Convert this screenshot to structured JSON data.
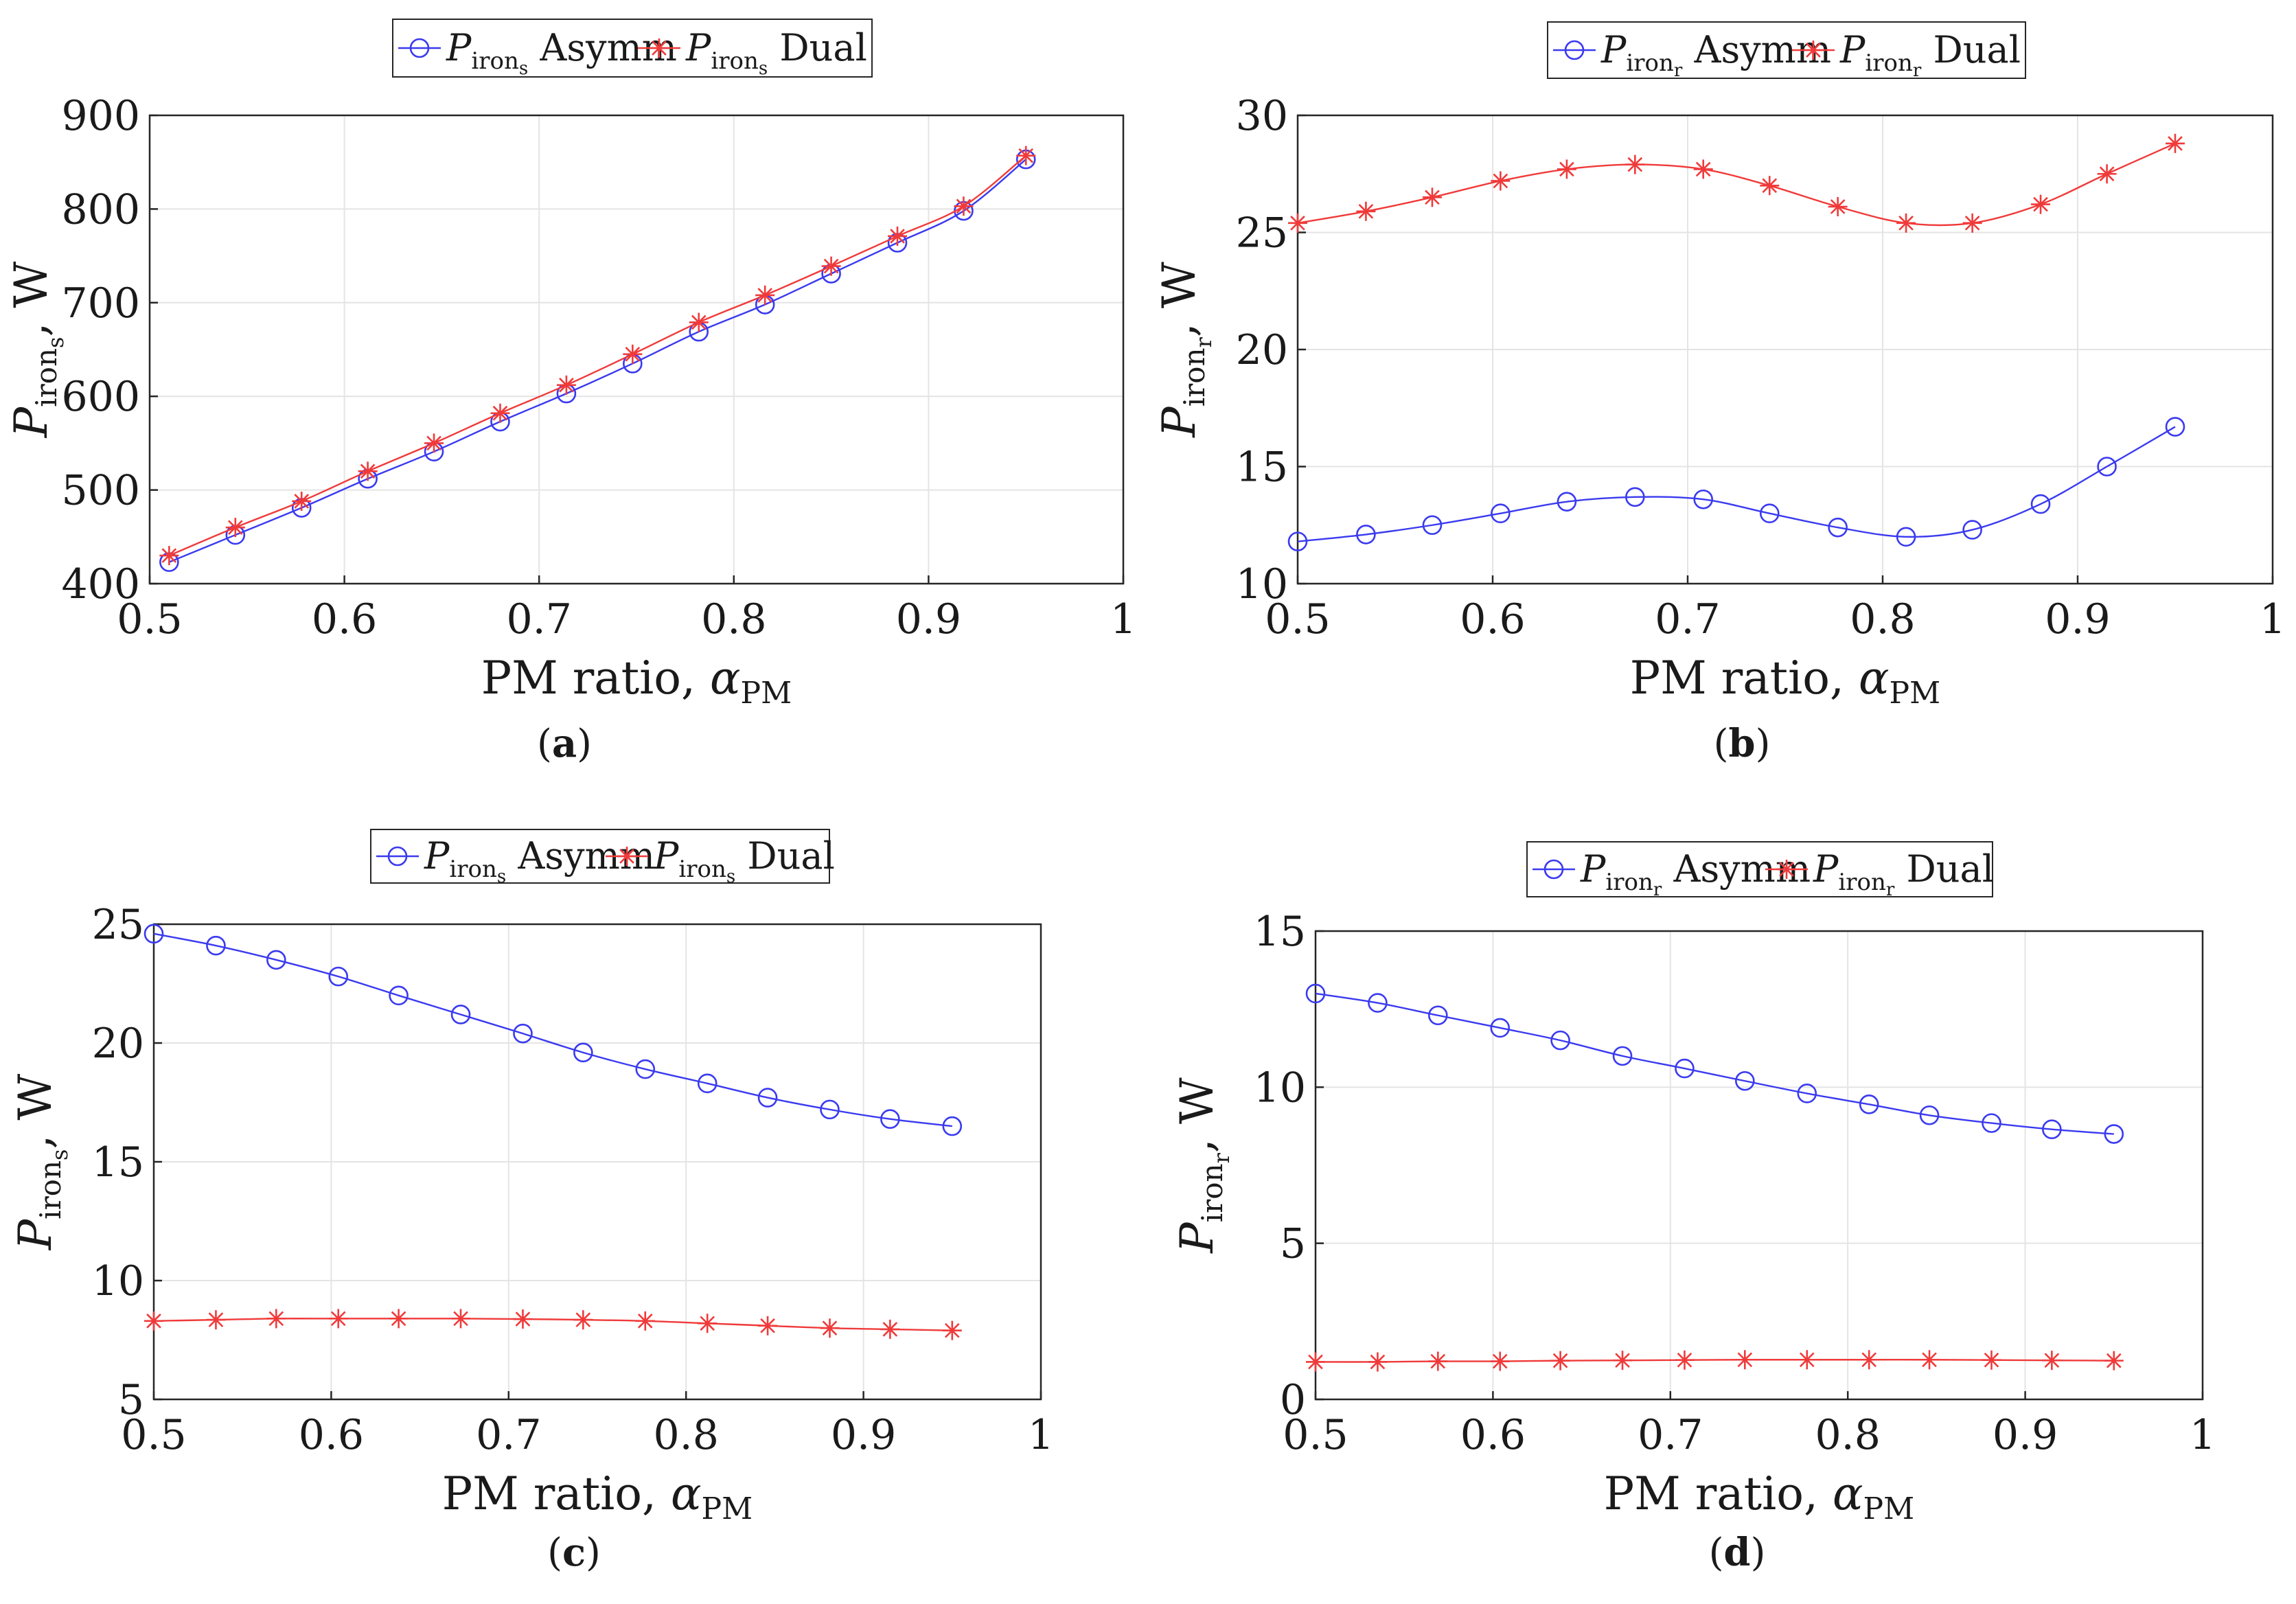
{
  "chart_data": [
    {
      "type": "line",
      "panel_label": "(a)",
      "panel_letter": "a",
      "xlabel": "PM ratio, α",
      "xlabel_main": "PM ratio, ",
      "xlabel_symbol": "α",
      "xlabel_sub": "PM",
      "ylabel": "P_irons, W",
      "ylabel_symbol": "P",
      "ylabel_sub": "iron",
      "ylabel_subsub": "s",
      "ylabel_unit": ", W",
      "xlim": [
        0.5,
        1
      ],
      "ylim": [
        400,
        900
      ],
      "xticks": [
        "0.5",
        "0.6",
        "0.7",
        "0.8",
        "0.9",
        "1"
      ],
      "yticks": [
        "400",
        "500",
        "600",
        "700",
        "800",
        "900"
      ],
      "grid": true,
      "legend_position": "top-center",
      "x": [
        0.51,
        0.544,
        0.578,
        0.612,
        0.646,
        0.68,
        0.714,
        0.748,
        0.782,
        0.816,
        0.85,
        0.884,
        0.918,
        0.95
      ],
      "series": [
        {
          "name": "P_irons Asymm",
          "sym": "P",
          "sub": "iron",
          "subsub": "s",
          "label": "Asymm",
          "color": "#3a3af0",
          "marker": "circle",
          "values": [
            423,
            452,
            481,
            512,
            541,
            573,
            603,
            635,
            669,
            698,
            731,
            764,
            798,
            853
          ]
        },
        {
          "name": "P_irons Dual",
          "sym": "P",
          "sub": "iron",
          "subsub": "s",
          "label": "Dual",
          "color": "#f03a3a",
          "marker": "star",
          "values": [
            430,
            460,
            488,
            520,
            550,
            582,
            612,
            645,
            679,
            708,
            739,
            771,
            803,
            857
          ]
        }
      ]
    },
    {
      "type": "line",
      "panel_label": "(b)",
      "panel_letter": "b",
      "xlabel": "PM ratio, α",
      "xlabel_main": "PM ratio, ",
      "xlabel_symbol": "α",
      "xlabel_sub": "PM",
      "ylabel": "P_ironr, W",
      "ylabel_symbol": "P",
      "ylabel_sub": "iron",
      "ylabel_subsub": "r",
      "ylabel_unit": ", W",
      "xlim": [
        0.5,
        1
      ],
      "ylim": [
        10,
        30
      ],
      "xticks": [
        "0.5",
        "0.6",
        "0.7",
        "0.8",
        "0.9",
        "1"
      ],
      "yticks": [
        "10",
        "15",
        "20",
        "25",
        "30"
      ],
      "grid": true,
      "legend_position": "top-center",
      "x": [
        0.5,
        0.535,
        0.569,
        0.604,
        0.638,
        0.673,
        0.708,
        0.742,
        0.777,
        0.812,
        0.846,
        0.881,
        0.915,
        0.95
      ],
      "series": [
        {
          "name": "P_ironr Asymm",
          "sym": "P",
          "sub": "iron",
          "subsub": "r",
          "label": "Asymm",
          "color": "#3a3af0",
          "marker": "circle",
          "values": [
            11.8,
            12.1,
            12.5,
            13.0,
            13.5,
            13.7,
            13.6,
            13.0,
            12.4,
            12.0,
            12.3,
            13.4,
            15.0,
            16.7
          ]
        },
        {
          "name": "P_ironr Dual",
          "sym": "P",
          "sub": "iron",
          "subsub": "r",
          "label": "Dual",
          "color": "#f03a3a",
          "marker": "star",
          "values": [
            25.4,
            25.9,
            26.5,
            27.2,
            27.7,
            27.9,
            27.7,
            27.0,
            26.1,
            25.4,
            25.4,
            26.2,
            27.5,
            28.8
          ]
        }
      ]
    },
    {
      "type": "line",
      "panel_label": "(c)",
      "panel_letter": "c",
      "xlabel": "PM ratio, α",
      "xlabel_main": "PM ratio, ",
      "xlabel_symbol": "α",
      "xlabel_sub": "PM",
      "ylabel": "P_irons, W",
      "ylabel_symbol": "P",
      "ylabel_sub": "iron",
      "ylabel_subsub": "s",
      "ylabel_unit": ", W",
      "xlim": [
        0.5,
        1
      ],
      "ylim": [
        5,
        25
      ],
      "xticks": [
        "0.5",
        "0.6",
        "0.7",
        "0.8",
        "0.9",
        "1"
      ],
      "yticks": [
        "5",
        "10",
        "15",
        "20",
        "25"
      ],
      "grid": true,
      "legend_position": "top-center",
      "x": [
        0.5,
        0.535,
        0.569,
        0.604,
        0.638,
        0.673,
        0.708,
        0.742,
        0.777,
        0.812,
        0.846,
        0.881,
        0.915,
        0.95
      ],
      "series": [
        {
          "name": "P_irons Asymm",
          "sym": "P",
          "sub": "iron",
          "subsub": "s",
          "label": "Asymm",
          "color": "#3a3af0",
          "marker": "circle",
          "values": [
            24.6,
            24.1,
            23.5,
            22.8,
            22.0,
            21.2,
            20.4,
            19.6,
            18.9,
            18.3,
            17.7,
            17.2,
            16.8,
            16.5
          ]
        },
        {
          "name": "P_irons Dual",
          "sym": "P",
          "sub": "iron",
          "subsub": "s",
          "label": "Dual",
          "color": "#f03a3a",
          "marker": "star",
          "values": [
            8.3,
            8.35,
            8.4,
            8.4,
            8.4,
            8.4,
            8.38,
            8.35,
            8.3,
            8.2,
            8.1,
            8.0,
            7.95,
            7.9
          ]
        }
      ]
    },
    {
      "type": "line",
      "panel_label": "(d)",
      "panel_letter": "d",
      "xlabel": "PM ratio, α",
      "xlabel_main": "PM ratio, ",
      "xlabel_symbol": "α",
      "xlabel_sub": "PM",
      "ylabel": "P_ironr, W",
      "ylabel_symbol": "P",
      "ylabel_sub": "iron",
      "ylabel_subsub": "r",
      "ylabel_unit": ", W",
      "xlim": [
        0.5,
        1
      ],
      "ylim": [
        0,
        15
      ],
      "xticks": [
        "0.5",
        "0.6",
        "0.7",
        "0.8",
        "0.9",
        "1"
      ],
      "yticks": [
        "0",
        "5",
        "10",
        "15"
      ],
      "grid": true,
      "legend_position": "top-center",
      "x": [
        0.5,
        0.535,
        0.569,
        0.604,
        0.638,
        0.673,
        0.708,
        0.742,
        0.777,
        0.812,
        0.846,
        0.881,
        0.915,
        0.95
      ],
      "series": [
        {
          "name": "P_ironr Asymm",
          "sym": "P",
          "sub": "iron",
          "subsub": "r",
          "label": "Asymm",
          "color": "#3a3af0",
          "marker": "circle",
          "values": [
            13.0,
            12.7,
            12.3,
            11.9,
            11.5,
            11.0,
            10.6,
            10.2,
            9.8,
            9.45,
            9.1,
            8.85,
            8.65,
            8.5
          ]
        },
        {
          "name": "P_ironr Dual",
          "sym": "P",
          "sub": "iron",
          "subsub": "r",
          "label": "Dual",
          "color": "#f03a3a",
          "marker": "star",
          "values": [
            1.2,
            1.2,
            1.22,
            1.22,
            1.24,
            1.25,
            1.26,
            1.27,
            1.27,
            1.27,
            1.27,
            1.26,
            1.25,
            1.24
          ]
        }
      ]
    }
  ]
}
